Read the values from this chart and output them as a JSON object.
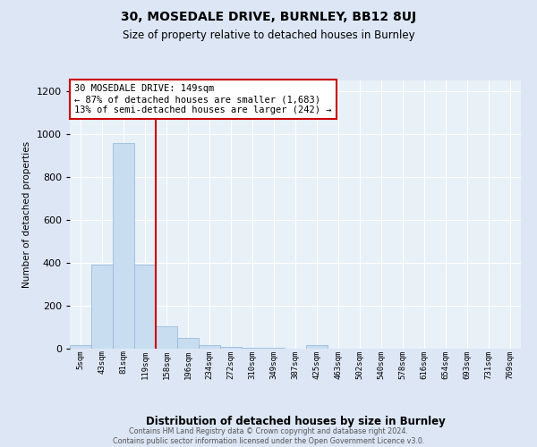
{
  "title": "30, MOSEDALE DRIVE, BURNLEY, BB12 8UJ",
  "subtitle": "Size of property relative to detached houses in Burnley",
  "xlabel": "Distribution of detached houses by size in Burnley",
  "ylabel": "Number of detached properties",
  "footer_line1": "Contains HM Land Registry data © Crown copyright and database right 2024.",
  "footer_line2": "Contains public sector information licensed under the Open Government Licence v3.0.",
  "categories": [
    "5sqm",
    "43sqm",
    "81sqm",
    "119sqm",
    "158sqm",
    "196sqm",
    "234sqm",
    "272sqm",
    "310sqm",
    "349sqm",
    "387sqm",
    "425sqm",
    "463sqm",
    "502sqm",
    "540sqm",
    "578sqm",
    "616sqm",
    "654sqm",
    "693sqm",
    "731sqm",
    "769sqm"
  ],
  "bar_values": [
    15,
    390,
    960,
    390,
    105,
    50,
    18,
    10,
    5,
    5,
    0,
    15,
    0,
    0,
    0,
    0,
    0,
    0,
    0,
    0,
    0
  ],
  "bar_color": "#c9ddf0",
  "bar_edge_color": "#8db4d8",
  "vline_x_index": 4,
  "vline_color": "#cc0000",
  "ylim": [
    0,
    1250
  ],
  "yticks": [
    0,
    200,
    400,
    600,
    800,
    1000,
    1200
  ],
  "annotation_text": "30 MOSEDALE DRIVE: 149sqm\n← 87% of detached houses are smaller (1,683)\n13% of semi-detached houses are larger (242) →",
  "annotation_box_color": "#ffffff",
  "annotation_box_edge_color": "#cc0000",
  "bg_color": "#dce6f5",
  "plot_bg_color": "#e8f0f8"
}
